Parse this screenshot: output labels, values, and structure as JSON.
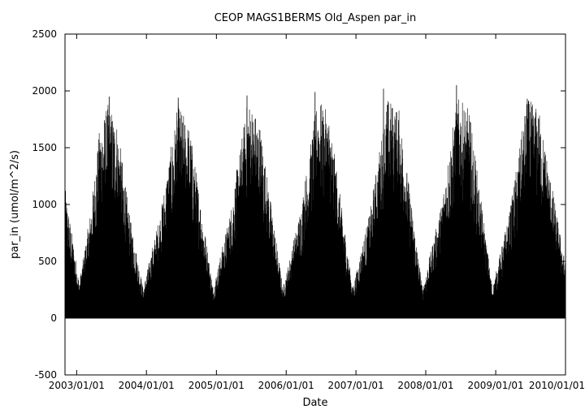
{
  "chart_data": {
    "type": "line",
    "title": "CEOP MAGS1BERMS Old_Aspen  par_in",
    "xlabel": "Date",
    "ylabel": "par_in (umol/m^2/s)",
    "ylim": [
      -500,
      2500
    ],
    "yticks": [
      -500,
      0,
      500,
      1000,
      1500,
      2000,
      2500
    ],
    "xlim": [
      "2002-11-01",
      "2010-01-01"
    ],
    "xticks": [
      "2003/01/01",
      "2004/01/01",
      "2005/01/01",
      "2006/01/01",
      "2007/01/01",
      "2008/01/01",
      "2009/01/01",
      "2010/01/01"
    ],
    "grid": false,
    "legend": "none",
    "series_color": "#000000",
    "series": [
      {
        "values_description_free": true,
        "seasonal_envelope": {
          "x": [
            "2002-11-01",
            "2003-01-15",
            "2003-03-15",
            "2003-05-01",
            "2003-06-15",
            "2003-08-01",
            "2003-10-01",
            "2003-12-15",
            "2004-03-15",
            "2004-06-15",
            "2004-08-15",
            "2004-12-15",
            "2005-03-15",
            "2005-06-15",
            "2005-08-15",
            "2005-12-15",
            "2006-03-15",
            "2006-06-15",
            "2006-08-15",
            "2006-12-15",
            "2007-03-15",
            "2007-06-15",
            "2007-08-15",
            "2007-12-15",
            "2008-03-15",
            "2008-06-15",
            "2008-08-15",
            "2008-12-15",
            "2009-03-15",
            "2009-06-15",
            "2009-08-15",
            "2010-01-01"
          ],
          "y": [
            1100,
            300,
            900,
            1600,
            1800,
            1650,
            900,
            250,
            900,
            1800,
            1600,
            250,
            900,
            1850,
            1650,
            250,
            900,
            1850,
            1700,
            250,
            900,
            1850,
            1750,
            250,
            900,
            1850,
            1750,
            250,
            900,
            1850,
            1750,
            450
          ]
        },
        "peaks": [
          {
            "x": "2003-06-20",
            "y": 1950
          },
          {
            "x": "2004-06-15",
            "y": 1940
          },
          {
            "x": "2005-06-10",
            "y": 1960
          },
          {
            "x": "2006-06-01",
            "y": 1990
          },
          {
            "x": "2007-05-25",
            "y": 2020
          },
          {
            "x": "2008-06-10",
            "y": 2050
          },
          {
            "x": "2009-06-15",
            "y": 1930
          }
        ]
      }
    ]
  }
}
